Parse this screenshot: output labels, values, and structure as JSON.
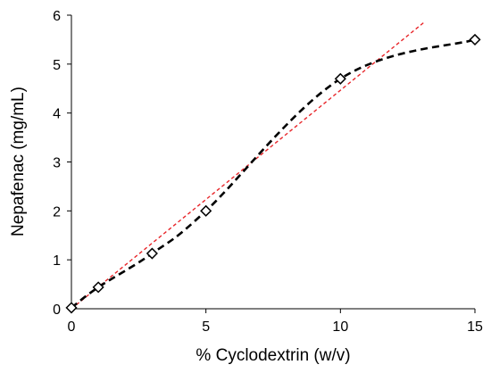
{
  "chart_data": {
    "type": "scatter",
    "title": "",
    "xlabel": "% Cyclodextrin (w/v)",
    "ylabel": "Nepafenac (mg/mL)",
    "xlim": [
      0,
      15
    ],
    "ylim": [
      0,
      6
    ],
    "xticks": [
      0,
      5,
      10,
      15
    ],
    "yticks": [
      0,
      1,
      2,
      3,
      4,
      5,
      6
    ],
    "grid": false,
    "legend": "none",
    "series": [
      {
        "x": [
          0,
          1,
          3,
          5,
          10,
          15
        ],
        "y": [
          0.02,
          0.44,
          1.13,
          2.0,
          4.7,
          5.5
        ],
        "marker": "diamond",
        "line": "smooth-dashed",
        "color": "#000000"
      },
      {
        "type": "linear-trendline",
        "x": [
          0,
          13.1
        ],
        "y": [
          0,
          5.85
        ],
        "line": "dashed",
        "color": "#e8262a"
      }
    ]
  }
}
